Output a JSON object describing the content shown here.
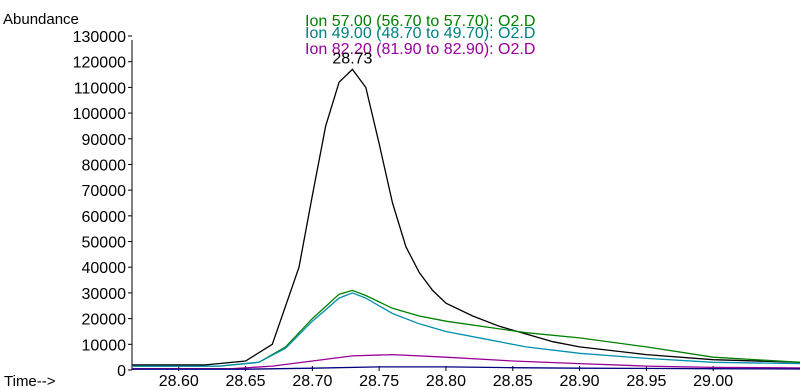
{
  "chart_data": {
    "type": "line",
    "ylabel": "Abundance",
    "xlabel": "Time-->",
    "xlim": [
      28.565,
      29.065
    ],
    "ylim": [
      0,
      130000
    ],
    "x_ticks": [
      28.6,
      28.65,
      28.7,
      28.75,
      28.8,
      28.85,
      28.9,
      28.95,
      29.0
    ],
    "y_ticks": [
      0,
      10000,
      20000,
      30000,
      40000,
      50000,
      60000,
      70000,
      80000,
      90000,
      100000,
      110000,
      120000,
      130000
    ],
    "peak_label": {
      "text": "28.73",
      "x": 28.73,
      "y": 117000
    },
    "legend": [
      {
        "text": "Ion  57.00 (56.70 to 57.70): O2.D",
        "color": "#008000"
      },
      {
        "text": "Ion  49.00 (48.70 to 49.70): O2.D",
        "color": "#008080"
      },
      {
        "text": "Ion  82.20 (81.90 to 82.90): O2.D",
        "color": "#990099"
      }
    ],
    "series": [
      {
        "color": "#000000",
        "points": [
          [
            28.565,
            2000
          ],
          [
            28.62,
            2000
          ],
          [
            28.65,
            3500
          ],
          [
            28.67,
            10000
          ],
          [
            28.69,
            40000
          ],
          [
            28.7,
            68000
          ],
          [
            28.71,
            95000
          ],
          [
            28.72,
            112000
          ],
          [
            28.73,
            117000
          ],
          [
            28.74,
            110000
          ],
          [
            28.75,
            88000
          ],
          [
            28.76,
            65000
          ],
          [
            28.77,
            48000
          ],
          [
            28.78,
            38000
          ],
          [
            28.79,
            31000
          ],
          [
            28.8,
            26000
          ],
          [
            28.82,
            21000
          ],
          [
            28.84,
            17000
          ],
          [
            28.86,
            14000
          ],
          [
            28.88,
            11000
          ],
          [
            28.9,
            9000
          ],
          [
            28.95,
            6000
          ],
          [
            29.0,
            4000
          ],
          [
            29.065,
            3000
          ]
        ]
      },
      {
        "color": "#008000",
        "points": [
          [
            28.565,
            1500
          ],
          [
            28.63,
            1500
          ],
          [
            28.66,
            3000
          ],
          [
            28.68,
            9000
          ],
          [
            28.7,
            20000
          ],
          [
            28.72,
            29500
          ],
          [
            28.73,
            31000
          ],
          [
            28.74,
            29000
          ],
          [
            28.76,
            24000
          ],
          [
            28.78,
            21000
          ],
          [
            28.8,
            19000
          ],
          [
            28.84,
            16000
          ],
          [
            28.86,
            14500
          ],
          [
            28.9,
            12500
          ],
          [
            28.95,
            9000
          ],
          [
            29.0,
            5000
          ],
          [
            29.065,
            3000
          ]
        ]
      },
      {
        "color": "#0090b0",
        "points": [
          [
            28.565,
            1500
          ],
          [
            28.63,
            1500
          ],
          [
            28.66,
            3000
          ],
          [
            28.68,
            8500
          ],
          [
            28.7,
            19000
          ],
          [
            28.72,
            28000
          ],
          [
            28.73,
            30000
          ],
          [
            28.74,
            28000
          ],
          [
            28.76,
            22000
          ],
          [
            28.78,
            18000
          ],
          [
            28.8,
            15000
          ],
          [
            28.83,
            12000
          ],
          [
            28.86,
            9000
          ],
          [
            28.9,
            6500
          ],
          [
            28.95,
            4500
          ],
          [
            29.0,
            3000
          ],
          [
            29.065,
            2500
          ]
        ]
      },
      {
        "color": "#990099",
        "points": [
          [
            28.565,
            500
          ],
          [
            28.64,
            500
          ],
          [
            28.67,
            1500
          ],
          [
            28.7,
            3500
          ],
          [
            28.73,
            5500
          ],
          [
            28.76,
            6000
          ],
          [
            28.8,
            5000
          ],
          [
            28.85,
            3500
          ],
          [
            28.9,
            2500
          ],
          [
            28.95,
            1500
          ],
          [
            29.0,
            1000
          ],
          [
            29.065,
            800
          ]
        ]
      },
      {
        "color": "#000080",
        "points": [
          [
            28.565,
            300
          ],
          [
            28.65,
            300
          ],
          [
            28.7,
            700
          ],
          [
            28.75,
            1200
          ],
          [
            28.8,
            1200
          ],
          [
            28.85,
            900
          ],
          [
            28.9,
            700
          ],
          [
            29.0,
            500
          ],
          [
            29.065,
            400
          ]
        ]
      }
    ]
  }
}
